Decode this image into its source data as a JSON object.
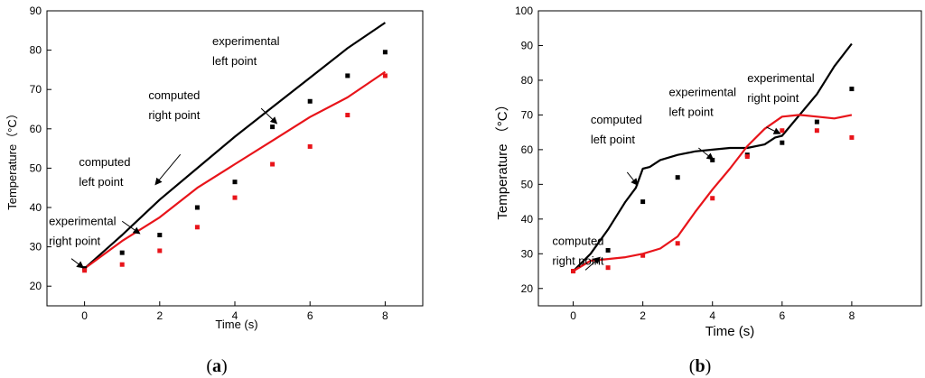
{
  "chart_data": [
    {
      "type": "line",
      "panel": "a",
      "caption_prefix": "(",
      "caption_letter": "a",
      "caption_suffix": ")",
      "xlabel": "Time (s)",
      "ylabel": "Temperature（°C）",
      "xlim": [
        -1,
        9
      ],
      "ylim": [
        15,
        90
      ],
      "xticks": [
        0,
        2,
        4,
        6,
        8
      ],
      "yticks": [
        20,
        30,
        40,
        50,
        60,
        70,
        80,
        90
      ],
      "grid": false,
      "series": [
        {
          "kind": "line",
          "color": "#000000",
          "x": [
            0,
            1,
            2,
            3,
            4,
            5,
            6,
            7,
            8
          ],
          "values": [
            24.5,
            33,
            42,
            50,
            58,
            65.5,
            73,
            80.5,
            87
          ]
        },
        {
          "kind": "line",
          "color": "#e8141a",
          "x": [
            0,
            1,
            2,
            3,
            4,
            5,
            6,
            7,
            8
          ],
          "values": [
            24.5,
            31.5,
            37.5,
            45,
            51,
            57,
            63,
            68,
            74.5
          ]
        },
        {
          "kind": "scatter",
          "color": "#000000",
          "x": [
            0,
            1,
            2,
            3,
            4,
            5,
            6,
            7,
            8
          ],
          "values": [
            24.5,
            28.5,
            33,
            40,
            46.5,
            60.5,
            67,
            73.5,
            79.5
          ]
        },
        {
          "kind": "scatter",
          "color": "#e8141a",
          "x": [
            0,
            1,
            2,
            3,
            4,
            5,
            6,
            7,
            8
          ],
          "values": [
            24,
            25.5,
            29,
            35,
            42.5,
            51,
            55.5,
            63.5,
            73.5
          ]
        }
      ],
      "annotations": [
        {
          "lines": [
            "experimental",
            "left point"
          ],
          "text_at": [
            3.4,
            81.3
          ],
          "arrow_from": [
            4.7,
            65.2
          ],
          "arrow_to": [
            5.1,
            61.5
          ]
        },
        {
          "lines": [
            "computed",
            "right point"
          ],
          "text_at": [
            1.7,
            67.5
          ],
          "arrow_from": [
            2.55,
            53.5
          ],
          "arrow_to": [
            1.9,
            46
          ]
        },
        {
          "lines": [
            "computed",
            "left point"
          ],
          "text_at": [
            -0.15,
            50.5
          ],
          "arrow_from": [
            1.0,
            36.5
          ],
          "arrow_to": [
            1.45,
            33.5
          ]
        },
        {
          "lines": [
            "experimental",
            "right point"
          ],
          "text_at": [
            -0.95,
            35.5
          ],
          "arrow_from": [
            -0.35,
            27
          ],
          "arrow_to": [
            -0.05,
            24.8
          ]
        }
      ]
    },
    {
      "type": "line",
      "panel": "b",
      "caption_prefix": "(",
      "caption_letter": "b",
      "caption_suffix": ")",
      "xlabel": "Time (s)",
      "ylabel": "Temperature （°C）",
      "xlim": [
        -1,
        10
      ],
      "ylim": [
        15,
        100
      ],
      "xticks": [
        0,
        2,
        4,
        6,
        8
      ],
      "yticks": [
        20,
        30,
        40,
        50,
        60,
        70,
        80,
        90,
        100
      ],
      "grid": false,
      "series": [
        {
          "kind": "line",
          "color": "#000000",
          "x": [
            0,
            0.5,
            1,
            1.5,
            1.8,
            2,
            2.2,
            2.5,
            3,
            3.5,
            4,
            4.5,
            5,
            5.5,
            5.8,
            6,
            6.5,
            7,
            7.5,
            8
          ],
          "values": [
            25,
            30,
            37,
            45,
            49,
            54.5,
            55,
            57,
            58.5,
            59.5,
            60,
            60.5,
            60.5,
            61.5,
            63.5,
            64,
            70,
            76,
            84,
            90.5
          ]
        },
        {
          "kind": "line",
          "color": "#e8141a",
          "x": [
            0,
            0.5,
            1,
            1.5,
            2,
            2.5,
            3,
            3.5,
            4,
            4.5,
            5,
            5.5,
            6,
            6.5,
            7,
            7.5,
            8
          ],
          "values": [
            25,
            28,
            28.5,
            29,
            30,
            31.5,
            35,
            42,
            48.5,
            54.5,
            61,
            66,
            69.5,
            70,
            69.5,
            69,
            70
          ]
        },
        {
          "kind": "scatter",
          "color": "#000000",
          "x": [
            0,
            1,
            2,
            3,
            4,
            5,
            6,
            7,
            8
          ],
          "values": [
            25,
            31,
            45,
            52,
            57,
            58.5,
            62,
            68,
            77.5
          ]
        },
        {
          "kind": "scatter",
          "color": "#e8141a",
          "x": [
            0,
            1,
            2,
            3,
            4,
            5,
            6,
            7,
            8
          ],
          "values": [
            25,
            26,
            29.5,
            33,
            46,
            58,
            65.5,
            65.5,
            63.5
          ]
        }
      ],
      "annotations": [
        {
          "lines": [
            "computed",
            "left point"
          ],
          "text_at": [
            0.5,
            67.5
          ],
          "arrow_from": [
            1.55,
            53.5
          ],
          "arrow_to": [
            1.83,
            50
          ]
        },
        {
          "lines": [
            "experimental",
            "left point"
          ],
          "text_at": [
            2.75,
            75.5
          ],
          "arrow_from": [
            3.6,
            60.5
          ],
          "arrow_to": [
            4.0,
            57.3
          ]
        },
        {
          "lines": [
            "experimental",
            "right point"
          ],
          "text_at": [
            5.0,
            79.5
          ],
          "arrow_from": [
            5.55,
            66.5
          ],
          "arrow_to": [
            5.92,
            64.7
          ]
        },
        {
          "lines": [
            "computed",
            "right point"
          ],
          "text_at": [
            -0.6,
            32.5
          ],
          "arrow_from": [
            0.35,
            25.3
          ],
          "arrow_to": [
            0.75,
            28.8
          ]
        }
      ]
    }
  ]
}
